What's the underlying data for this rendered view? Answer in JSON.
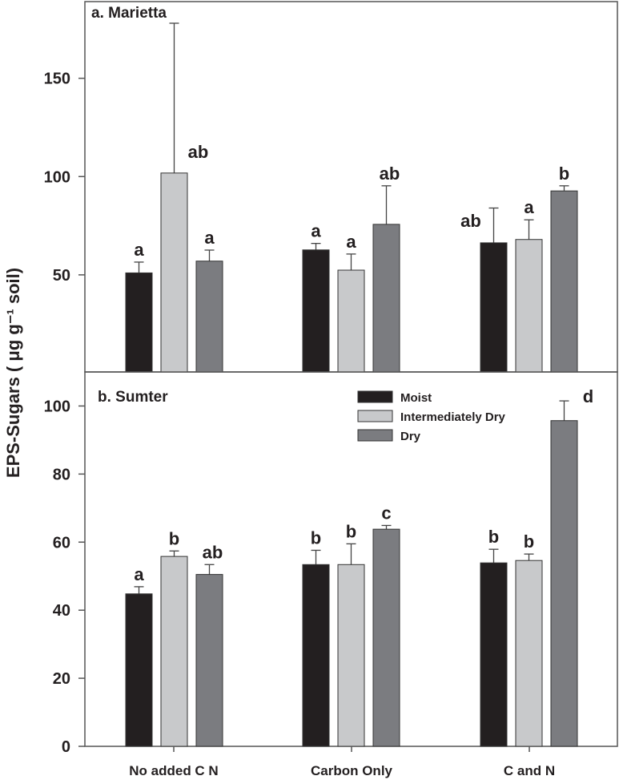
{
  "chart_data": [
    {
      "type": "bar",
      "title": "a. Marietta",
      "ylabel": "EPS-Sugars ( μg g⁻¹ soil)",
      "ylim": [
        0,
        189
      ],
      "yticks": [
        50,
        100,
        150
      ],
      "categories": [
        "No added C N",
        "Carbon Only",
        "C and N"
      ],
      "series": [
        {
          "name": "Moist",
          "color": "#231f20",
          "values": [
            51,
            62.7,
            66.3
          ],
          "error": [
            5.5,
            3.3,
            17.7
          ],
          "letters": [
            "a",
            "a",
            "ab"
          ]
        },
        {
          "name": "Intermediately Dry",
          "color": "#c8c9cb",
          "values": [
            101.8,
            52.4,
            68
          ],
          "error": [
            76.2,
            8.2,
            10
          ],
          "letters": [
            "ab",
            "a",
            "a"
          ]
        },
        {
          "name": "Dry",
          "color": "#7b7c80",
          "values": [
            57,
            75.7,
            92.7
          ],
          "error": [
            5.6,
            19.6,
            2.6
          ],
          "letters": [
            "a",
            "ab",
            "b"
          ]
        }
      ]
    },
    {
      "type": "bar",
      "title": "b. Sumter",
      "ylim": [
        0,
        110
      ],
      "yticks": [
        0,
        20,
        40,
        60,
        80,
        100
      ],
      "categories": [
        "No added C N",
        "Carbon Only",
        "C and N"
      ],
      "legend": {
        "position": "top-center",
        "entries": [
          "Moist",
          "Intermediately Dry",
          "Dry"
        ]
      },
      "series": [
        {
          "name": "Moist",
          "color": "#231f20",
          "values": [
            44.8,
            53.4,
            53.9
          ],
          "error": [
            2.1,
            4.2,
            4.0
          ],
          "letters": [
            "a",
            "b",
            "b"
          ]
        },
        {
          "name": "Intermediately Dry",
          "color": "#c8c9cb",
          "values": [
            55.8,
            53.4,
            54.6
          ],
          "error": [
            1.6,
            6.1,
            1.9
          ],
          "letters": [
            "b",
            "b",
            "b"
          ]
        },
        {
          "name": "Dry",
          "color": "#7b7c80",
          "values": [
            50.5,
            63.8,
            95.7
          ],
          "error": [
            2.9,
            1.1,
            5.8
          ],
          "letters": [
            "ab",
            "c",
            "d"
          ]
        }
      ]
    }
  ]
}
